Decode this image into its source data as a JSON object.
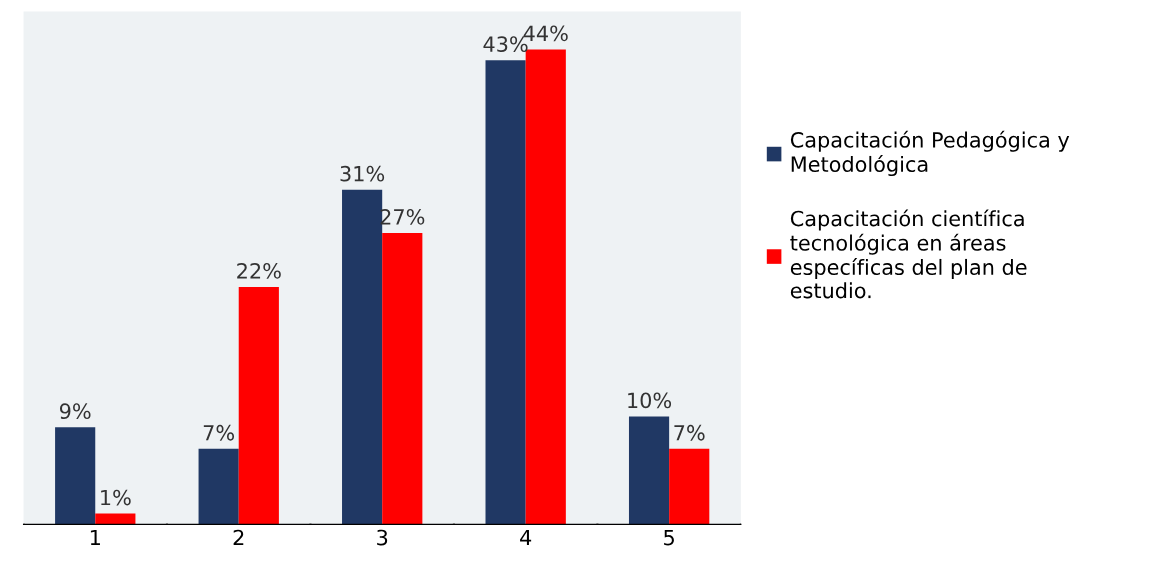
{
  "chart_data": {
    "type": "bar",
    "categories": [
      "1",
      "2",
      "3",
      "4",
      "5"
    ],
    "series": [
      {
        "name": "Capacitación Pedagógica y Metodológica",
        "color": "#203864",
        "values": [
          9,
          7,
          31,
          43,
          10
        ],
        "value_labels": [
          "9%",
          "7%",
          "31%",
          "43%",
          "10%"
        ]
      },
      {
        "name": "Capacitación científica tecnológica en áreas específicas del plan de estudio.",
        "color": "#ff0000",
        "values": [
          1,
          22,
          27,
          44,
          7
        ],
        "value_labels": [
          "1%",
          "22%",
          "27%",
          "44%",
          "7%"
        ]
      }
    ],
    "legend": "right",
    "grid": false
  }
}
